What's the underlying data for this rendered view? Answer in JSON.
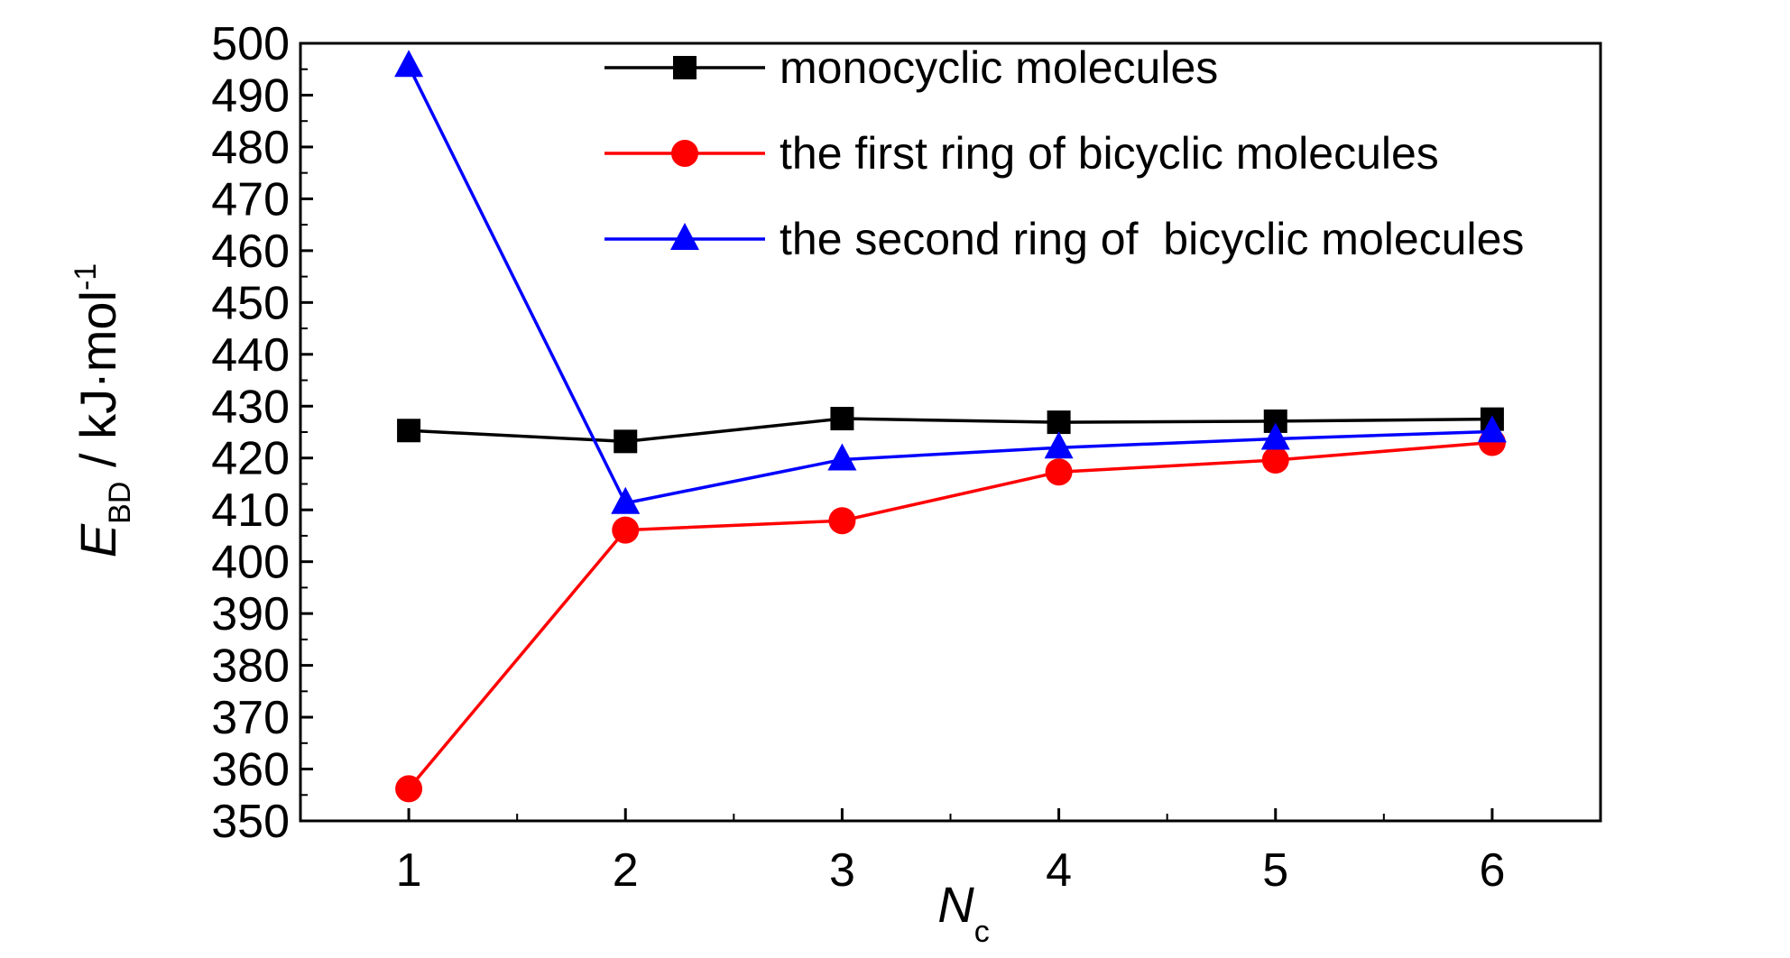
{
  "chart_data": {
    "type": "line",
    "x": [
      1,
      2,
      3,
      4,
      5,
      6
    ],
    "xlim": [
      0.5,
      6.5
    ],
    "ylim": [
      350,
      500
    ],
    "x_ticks": [
      "1",
      "2",
      "3",
      "4",
      "5",
      "6"
    ],
    "y_ticks": [
      "350",
      "360",
      "370",
      "380",
      "390",
      "400",
      "410",
      "420",
      "430",
      "440",
      "450",
      "460",
      "470",
      "480",
      "490",
      "500"
    ],
    "xlabel": {
      "main": "N",
      "sub": "c"
    },
    "ylabel": {
      "main": "E",
      "sub": "BD",
      "rest": " / kJ·mol",
      "sup": "-1"
    },
    "grid": false,
    "legend_position": "top-center",
    "series": [
      {
        "name": "monocyclic molecules",
        "color": "#000000",
        "marker": "square",
        "values": [
          425.3,
          423.2,
          427.6,
          426.9,
          427.1,
          427.5
        ]
      },
      {
        "name": "the first ring of bicyclic molecules",
        "color": "#ff0000",
        "marker": "circle",
        "values": [
          356.2,
          406.1,
          407.9,
          417.3,
          419.6,
          423.0
        ]
      },
      {
        "name": "the second ring of  bicyclic molecules",
        "color": "#0000ff",
        "marker": "triangle",
        "values": [
          495.6,
          411.3,
          419.7,
          422.0,
          423.7,
          425.1
        ]
      }
    ]
  }
}
